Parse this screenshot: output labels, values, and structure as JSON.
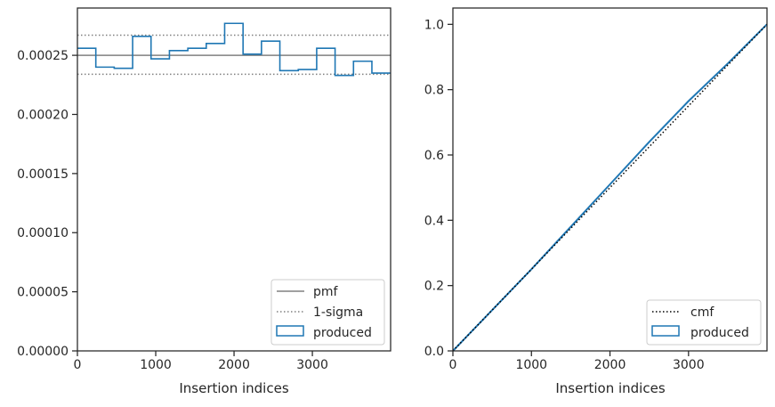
{
  "chart_data": [
    {
      "type": "histogram-step",
      "xlabel": "Insertion indices",
      "ylabel": "",
      "xlim": [
        0,
        3999
      ],
      "ylim": [
        0,
        0.00029
      ],
      "xticks": [
        0,
        1000,
        2000,
        3000
      ],
      "xtick_labels": [
        "0",
        "1000",
        "2000",
        "3000"
      ],
      "yticks": [
        0,
        5e-05,
        0.0001,
        0.00015,
        0.0002,
        0.00025
      ],
      "ytick_labels": [
        "0.00000",
        "0.00005",
        "0.00010",
        "0.00015",
        "0.00020",
        "0.00025"
      ],
      "legend_position": "lower right",
      "series": [
        {
          "name": "pmf",
          "kind": "hline",
          "y": 0.00025,
          "color": "#808080",
          "style": "solid"
        },
        {
          "name": "1-sigma",
          "kind": "hlines",
          "y": [
            0.000267,
            0.000234
          ],
          "color": "#808080",
          "style": "dotted"
        },
        {
          "name": "produced",
          "kind": "step",
          "color": "#1f77b4",
          "bin_edges": [
            0,
            235,
            470,
            705,
            940,
            1175,
            1410,
            1645,
            1880,
            2115,
            2350,
            2585,
            2820,
            3055,
            3290,
            3525,
            3760,
            3999
          ],
          "values": [
            0.000256,
            0.00024,
            0.000239,
            0.000266,
            0.000247,
            0.000254,
            0.000256,
            0.00026,
            0.000277,
            0.000251,
            0.000262,
            0.000237,
            0.000238,
            0.000256,
            0.000233,
            0.000245,
            0.000235
          ]
        }
      ]
    },
    {
      "type": "line",
      "xlabel": "Insertion indices",
      "ylabel": "",
      "xlim": [
        0,
        3999
      ],
      "ylim": [
        0,
        1.05
      ],
      "xticks": [
        0,
        1000,
        2000,
        3000
      ],
      "xtick_labels": [
        "0",
        "1000",
        "2000",
        "3000"
      ],
      "yticks": [
        0,
        0.2,
        0.4,
        0.6,
        0.8,
        1.0
      ],
      "ytick_labels": [
        "0.0",
        "0.2",
        "0.4",
        "0.6",
        "0.8",
        "1.0"
      ],
      "legend_position": "lower right",
      "series": [
        {
          "name": "cmf",
          "kind": "line",
          "color": "#000000",
          "style": "dotted",
          "x": [
            0,
            3999
          ],
          "y": [
            0,
            1.0
          ]
        },
        {
          "name": "produced",
          "kind": "line",
          "color": "#1f77b4",
          "style": "solid",
          "x": [
            0,
            500,
            1000,
            1500,
            2000,
            2500,
            3000,
            3500,
            3999
          ],
          "y": [
            0,
            0.125,
            0.25,
            0.38,
            0.51,
            0.64,
            0.765,
            0.88,
            1.0
          ]
        }
      ]
    }
  ]
}
